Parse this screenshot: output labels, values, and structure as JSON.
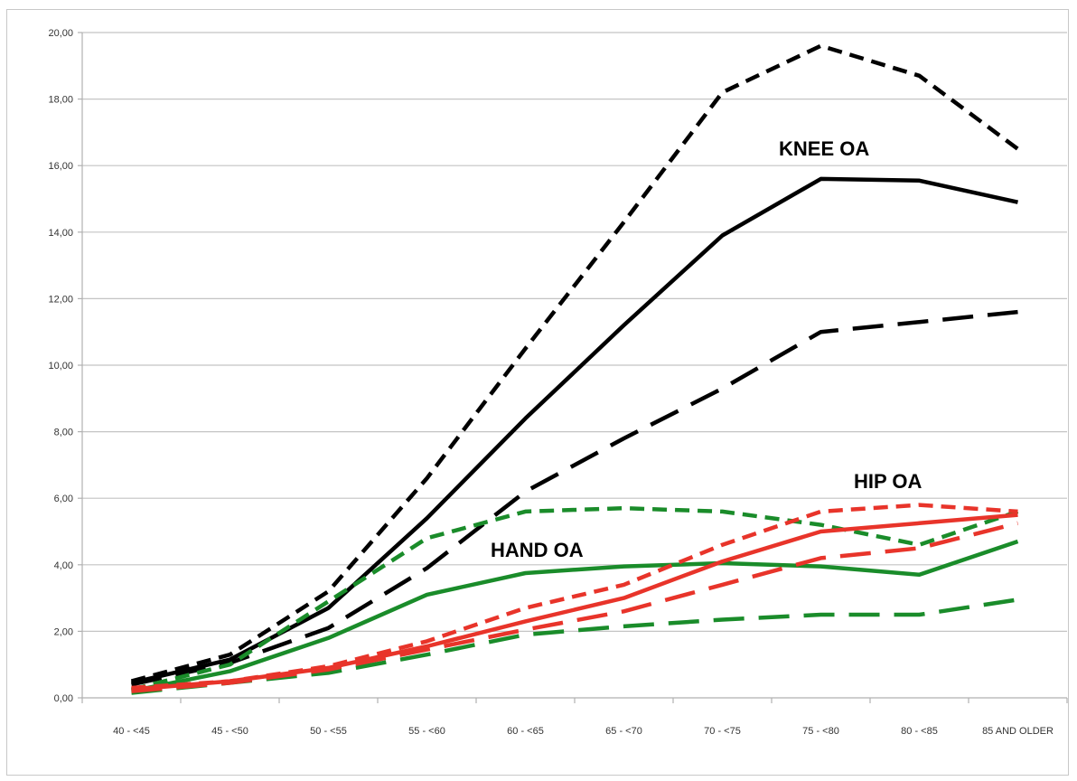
{
  "chart_data": {
    "type": "line",
    "categories": [
      "40 - <45",
      "45 - <50",
      "50 - <55",
      "55 - <60",
      "60 - <65",
      "65 - <70",
      "70 - <75",
      "75 - <80",
      "80 - <85",
      "85 AND OLDER"
    ],
    "ylim": [
      0,
      20
    ],
    "y_ticks": [
      "0,00",
      "2,00",
      "4,00",
      "6,00",
      "8,00",
      "10,00",
      "12,00",
      "14,00",
      "16,00",
      "18,00",
      "20,00"
    ],
    "grid": "horizontal",
    "series": [
      {
        "color": "#000000",
        "dash": "short",
        "values": [
          0.5,
          1.3,
          3.2,
          6.6,
          10.5,
          14.3,
          18.2,
          19.6,
          18.7,
          16.5
        ]
      },
      {
        "color": "#000000",
        "dash": "solid",
        "values": [
          0.45,
          1.15,
          2.7,
          5.4,
          8.4,
          11.2,
          13.9,
          15.6,
          15.55,
          14.9
        ]
      },
      {
        "color": "#000000",
        "dash": "long",
        "values": [
          0.4,
          1.05,
          2.1,
          3.9,
          6.2,
          7.8,
          9.3,
          11.0,
          11.3,
          11.6
        ]
      },
      {
        "color": "#1a8c2a",
        "dash": "short",
        "values": [
          0.25,
          1.0,
          2.9,
          4.8,
          5.6,
          5.7,
          5.6,
          5.2,
          4.6,
          5.6
        ]
      },
      {
        "color": "#1a8c2a",
        "dash": "solid",
        "values": [
          0.2,
          0.8,
          1.8,
          3.1,
          3.75,
          3.95,
          4.05,
          3.95,
          3.7,
          4.7
        ]
      },
      {
        "color": "#1a8c2a",
        "dash": "long",
        "values": [
          0.15,
          0.45,
          0.75,
          1.3,
          1.9,
          2.15,
          2.35,
          2.5,
          2.5,
          2.95
        ]
      },
      {
        "color": "#e8342a",
        "dash": "short",
        "values": [
          0.3,
          0.5,
          0.95,
          1.7,
          2.7,
          3.4,
          4.6,
          5.6,
          5.8,
          5.6
        ]
      },
      {
        "color": "#e8342a",
        "dash": "solid",
        "values": [
          0.25,
          0.5,
          0.9,
          1.55,
          2.3,
          3.0,
          4.1,
          5.0,
          5.25,
          5.5
        ]
      },
      {
        "color": "#e8342a",
        "dash": "long",
        "values": [
          0.2,
          0.45,
          0.85,
          1.45,
          2.05,
          2.6,
          3.4,
          4.2,
          4.5,
          5.25
        ]
      }
    ],
    "annotations": [
      {
        "text": "KNEE OA"
      },
      {
        "text": "HIP OA"
      },
      {
        "text": "HAND OA"
      }
    ]
  }
}
